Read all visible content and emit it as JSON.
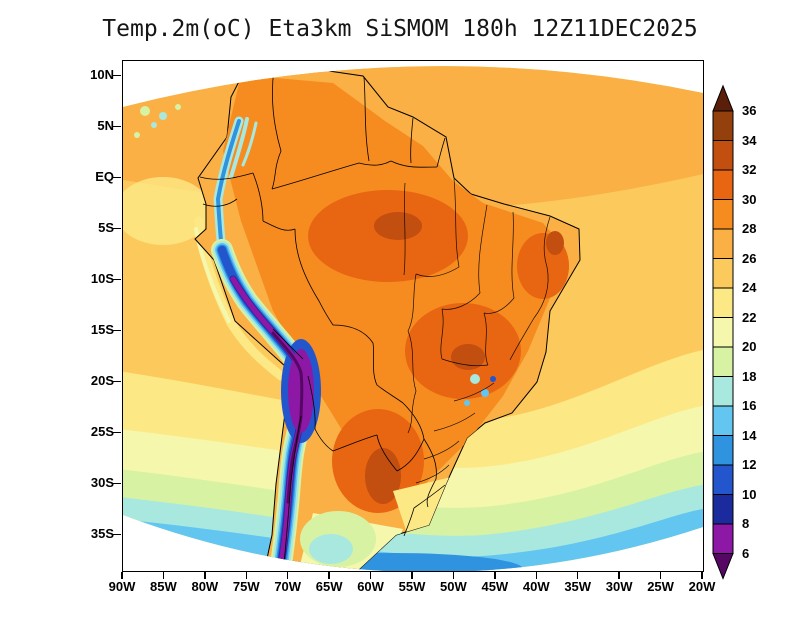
{
  "title": "Temp.2m(oC) Eta3km SiSMOM 180h 12Z11DEC2025",
  "axes": {
    "y_labels": [
      "10N",
      "5N",
      "EQ",
      "5S",
      "10S",
      "15S",
      "20S",
      "25S",
      "30S",
      "35S"
    ],
    "x_labels": [
      "90W",
      "85W",
      "80W",
      "75W",
      "70W",
      "65W",
      "60W",
      "55W",
      "50W",
      "45W",
      "40W",
      "35W",
      "30W",
      "25W",
      "20W"
    ]
  },
  "colorbar": {
    "units": "oC",
    "labels": [
      "36",
      "34",
      "32",
      "30",
      "28",
      "26",
      "24",
      "22",
      "20",
      "18",
      "16",
      "14",
      "12",
      "10",
      "8",
      "6"
    ],
    "colors": [
      "#5a1e09",
      "#93400d",
      "#c24e10",
      "#e86511",
      "#f68b1f",
      "#fab044",
      "#fcca5c",
      "#fde886",
      "#f5f7ac",
      "#d7f2a3",
      "#a9e8df",
      "#63c6f0",
      "#2f93e0",
      "#2356cd",
      "#1b2b9e",
      "#8d18a6",
      "#560764"
    ]
  },
  "chart_data": {
    "type": "heatmap",
    "subtype": "filled contour 2m-temperature map over South America",
    "title": "Temp.2m(oC) Eta3km SiSMOM 180h 12Z11DEC2025",
    "variable": "Temp.2m",
    "units": "oC",
    "model": "Eta3km SiSMOM",
    "forecast_hour": 180,
    "valid_init": "12Z11DEC2025",
    "x_axis": {
      "ticks": [
        "90W",
        "85W",
        "80W",
        "75W",
        "70W",
        "65W",
        "60W",
        "55W",
        "50W",
        "45W",
        "40W",
        "35W",
        "30W",
        "25W",
        "20W"
      ]
    },
    "y_axis": {
      "ticks": [
        "10N",
        "5N",
        "EQ",
        "5S",
        "10S",
        "15S",
        "20S",
        "25S",
        "30S",
        "35S"
      ]
    },
    "contour_levels": [
      6,
      8,
      10,
      12,
      14,
      16,
      18,
      20,
      22,
      24,
      26,
      28,
      30,
      32,
      34,
      36
    ],
    "palette_top_to_bottom": [
      "#5a1e09",
      "#93400d",
      "#c24e10",
      "#e86511",
      "#f68b1f",
      "#fab044",
      "#fcca5c",
      "#fde886",
      "#f5f7ac",
      "#d7f2a3",
      "#a9e8df",
      "#63c6f0",
      "#2f93e0",
      "#2356cd",
      "#1b2b9e",
      "#8d18a6",
      "#560764"
    ],
    "legend_position": "right",
    "visible_features": [
      "cold band (<8 oC, purple/blue) along the Andes cordillera",
      "warm 28-34 oC region over interior Brazil, Paraguay and northern Argentina",
      "26-28 oC tropical ocean in the northern part of the domain",
      "progressively cooler ocean (22 down to 14 oC) south of 20S",
      "curved model-domain edges leaving white corners"
    ]
  }
}
